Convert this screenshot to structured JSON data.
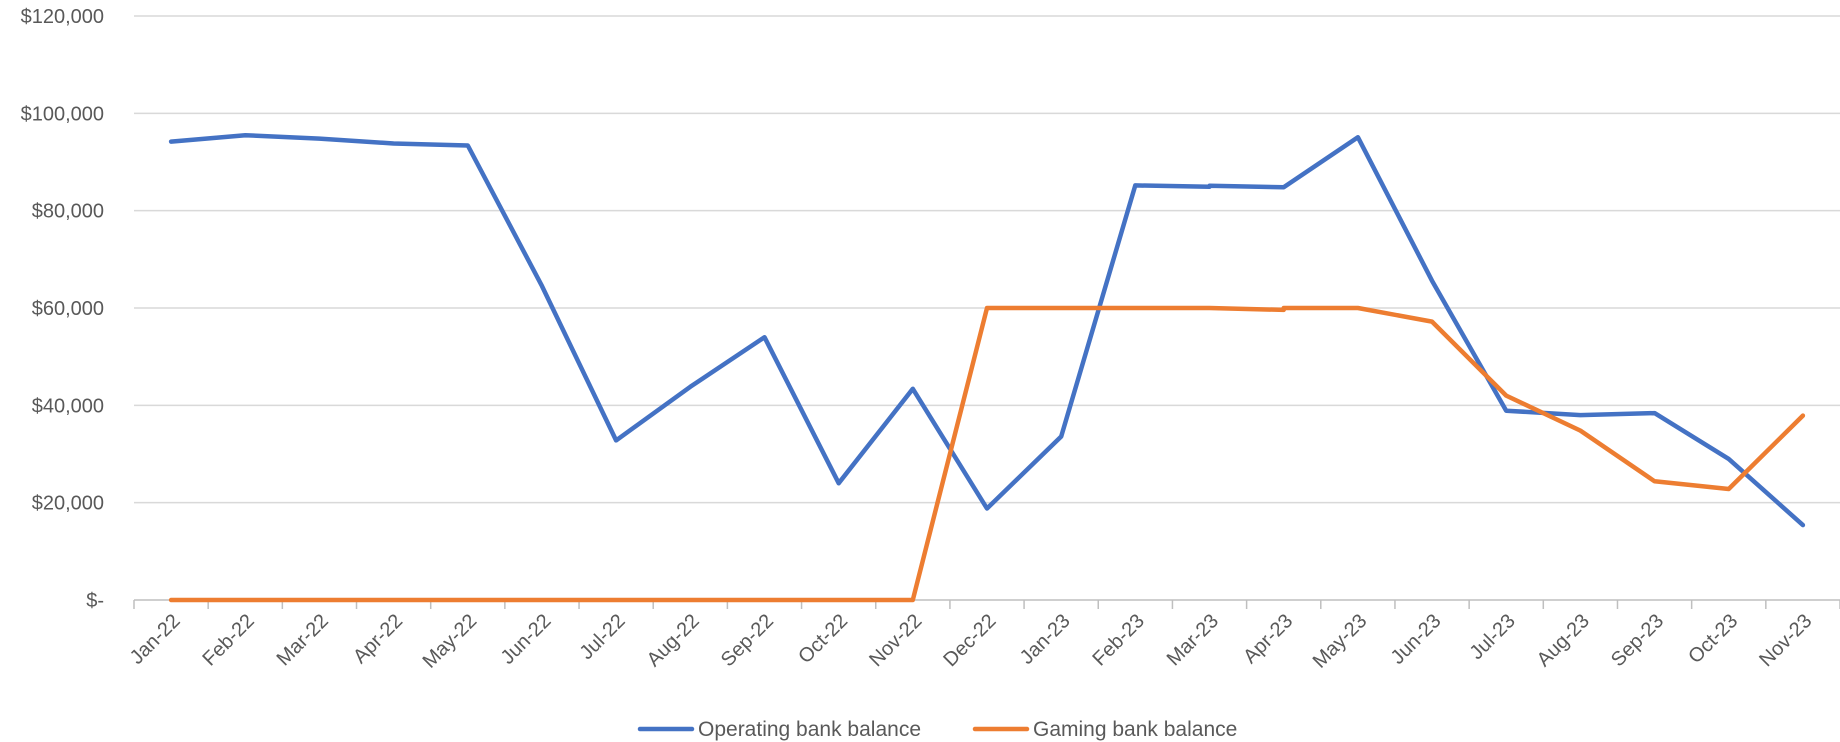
{
  "chart_data": {
    "type": "line",
    "title": "",
    "xlabel": "",
    "ylabel": "",
    "ylim": [
      0,
      120000
    ],
    "y_ticks": [
      {
        "value": 0,
        "label": "$-"
      },
      {
        "value": 20000,
        "label": "$20,000"
      },
      {
        "value": 40000,
        "label": "$40,000"
      },
      {
        "value": 60000,
        "label": "$60,000"
      },
      {
        "value": 80000,
        "label": "$80,000"
      },
      {
        "value": 100000,
        "label": "$100,000"
      },
      {
        "value": 120000,
        "label": "$120,000"
      }
    ],
    "grid": true,
    "legend_position": "bottom",
    "categories": [
      "Jan-22",
      "Feb-22",
      "Mar-22",
      "Apr-22",
      "May-22",
      "Jun-22",
      "Jul-22",
      "Aug-22",
      "Sep-22",
      "Oct-22",
      "Nov-22",
      "Dec-22",
      "Jan-23",
      "Feb-23",
      "Mar-23",
      "Apr-23",
      "May-23",
      "Jun-23",
      "Jul-23",
      "Aug-23",
      "Sep-23",
      "Oct-23",
      "Nov-23"
    ],
    "series": [
      {
        "name": "Operating bank balance",
        "color": "#4472C4",
        "points": [
          {
            "x": 0.0,
            "y": 94200
          },
          {
            "x": 1.0,
            "y": 95500
          },
          {
            "x": 2.0,
            "y": 94800
          },
          {
            "x": 3.0,
            "y": 93800
          },
          {
            "x": 4.0,
            "y": 93400
          },
          {
            "x": 5.0,
            "y": 64500
          },
          {
            "x": 6.0,
            "y": 32800
          },
          {
            "x": 7.0,
            "y": 43800
          },
          {
            "x": 8.0,
            "y": 54000
          },
          {
            "x": 9.0,
            "y": 24000
          },
          {
            "x": 10.0,
            "y": 43400
          },
          {
            "x": 11.0,
            "y": 18800
          },
          {
            "x": 12.0,
            "y": 33600
          },
          {
            "x": 13.0,
            "y": 85200
          },
          {
            "x": 14.0,
            "y": 84900
          },
          {
            "x": 14.0,
            "y": 85100
          },
          {
            "x": 15.0,
            "y": 84800
          },
          {
            "x": 16.0,
            "y": 95100
          },
          {
            "x": 17.0,
            "y": 65600
          },
          {
            "x": 18.0,
            "y": 38900
          },
          {
            "x": 19.0,
            "y": 38000
          },
          {
            "x": 20.0,
            "y": 38400
          },
          {
            "x": 21.0,
            "y": 29000
          },
          {
            "x": 22.0,
            "y": 15400
          }
        ]
      },
      {
        "name": "Gaming bank balance",
        "color": "#ED7D31",
        "points": [
          {
            "x": 0.0,
            "y": 0
          },
          {
            "x": 1.0,
            "y": 0
          },
          {
            "x": 2.0,
            "y": 0
          },
          {
            "x": 3.0,
            "y": 0
          },
          {
            "x": 4.0,
            "y": 0
          },
          {
            "x": 5.0,
            "y": 0
          },
          {
            "x": 6.0,
            "y": 0
          },
          {
            "x": 7.0,
            "y": 0
          },
          {
            "x": 8.0,
            "y": 0
          },
          {
            "x": 9.0,
            "y": 0
          },
          {
            "x": 10.0,
            "y": 0
          },
          {
            "x": 11.0,
            "y": 60000
          },
          {
            "x": 12.0,
            "y": 60000
          },
          {
            "x": 13.0,
            "y": 60000
          },
          {
            "x": 14.0,
            "y": 60000
          },
          {
            "x": 15.0,
            "y": 59600
          },
          {
            "x": 15.0,
            "y": 60000
          },
          {
            "x": 16.0,
            "y": 60000
          },
          {
            "x": 17.0,
            "y": 57200
          },
          {
            "x": 18.0,
            "y": 42000
          },
          {
            "x": 19.0,
            "y": 34800
          },
          {
            "x": 20.0,
            "y": 24400
          },
          {
            "x": 21.0,
            "y": 22800
          },
          {
            "x": 22.0,
            "y": 37900
          }
        ]
      }
    ]
  }
}
